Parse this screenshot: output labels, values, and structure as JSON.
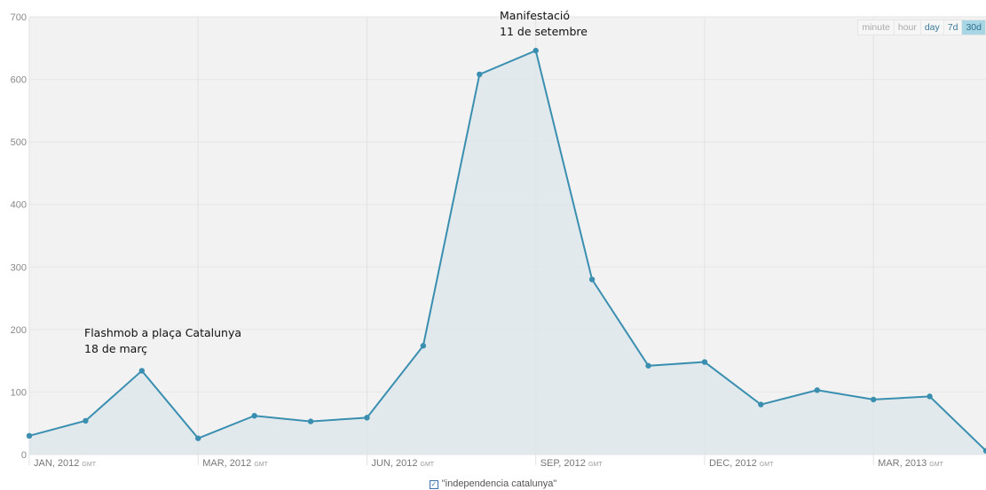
{
  "chart_data": {
    "type": "area",
    "x_tick_labels": [
      {
        "label": "JAN, 2012",
        "suffix": "GMT",
        "index": 0
      },
      {
        "label": "MAR, 2012",
        "suffix": "GMT",
        "index": 3
      },
      {
        "label": "JUN, 2012",
        "suffix": "GMT",
        "index": 6
      },
      {
        "label": "SEP, 2012",
        "suffix": "GMT",
        "index": 9
      },
      {
        "label": "DEC, 2012",
        "suffix": "GMT",
        "index": 12
      },
      {
        "label": "MAR, 2013",
        "suffix": "GMT",
        "index": 15
      }
    ],
    "series": [
      {
        "name": "\"independencia catalunya\"",
        "values": [
          30,
          54,
          134,
          26,
          62,
          53,
          59,
          174,
          608,
          646,
          280,
          142,
          148,
          80,
          103,
          88,
          93,
          6
        ]
      }
    ],
    "ylim": [
      0,
      700
    ],
    "yticks": [
      0,
      100,
      200,
      300,
      400,
      500,
      600,
      700
    ],
    "grid": true,
    "colors": {
      "line": "#3a8fb0",
      "fill": "#dce6ea",
      "grid": "#e6e6e6",
      "plot_bg": "#f2f2f2"
    },
    "annotations": [
      {
        "lines": [
          "Flashmob a plaça Catalunya",
          "18 de març"
        ],
        "index": 2
      },
      {
        "lines": [
          "Manifestació",
          "11 de setembre"
        ],
        "index": 9
      }
    ]
  },
  "range_selector": {
    "options": [
      "minute",
      "hour",
      "day",
      "7d",
      "30d"
    ],
    "active": "30d"
  },
  "legend": {
    "label": "\"independencia catalunya\"",
    "checked": true
  }
}
